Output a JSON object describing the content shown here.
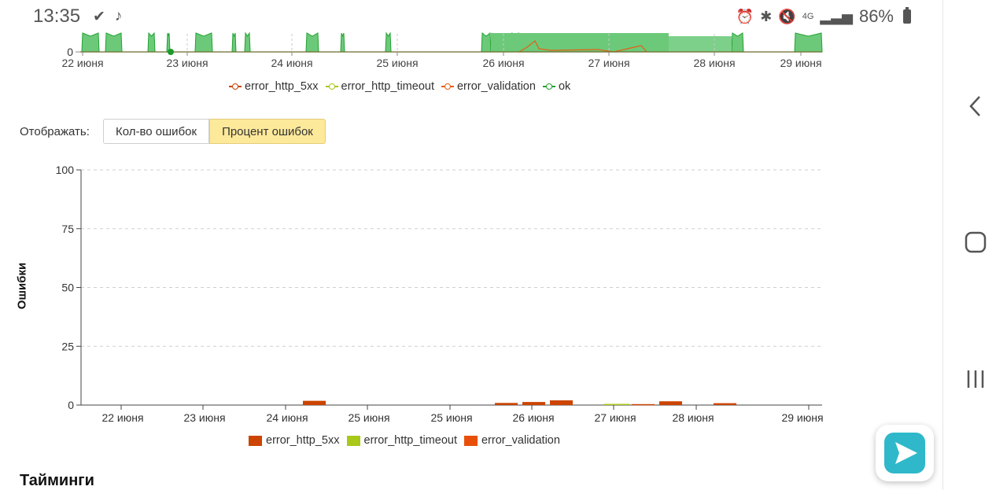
{
  "status": {
    "time": "13:35",
    "battery": "86%",
    "network": "4G"
  },
  "top_chart": {
    "y_tick": "0",
    "x_ticks": [
      "22 июня",
      "23 июня",
      "24 июня",
      "25 июня",
      "26 июня",
      "27 июня",
      "28 июня",
      "29 июня"
    ],
    "legend": [
      "error_http_5xx",
      "error_http_timeout",
      "error_validation",
      "ok"
    ]
  },
  "controls": {
    "display_label": "Отображать:",
    "count_button": "Кол-во ошибок",
    "percent_button": "Процент ошибок"
  },
  "chart_data": [
    {
      "type": "area",
      "title": "",
      "x": [
        "22 июня",
        "23 июня",
        "24 июня",
        "25 июня",
        "26 июня",
        "27 июня",
        "28 июня",
        "29 июня"
      ],
      "series": [
        {
          "name": "error_http_5xx",
          "color": "#cc4400"
        },
        {
          "name": "error_http_timeout",
          "color": "#a8c81a"
        },
        {
          "name": "error_validation",
          "color": "#e85d0f"
        },
        {
          "name": "ok",
          "color": "#22a332"
        }
      ]
    },
    {
      "type": "bar",
      "title": "",
      "ylabel": "Ошибки",
      "ylim": [
        0,
        100
      ],
      "y_ticks": [
        "0",
        "25",
        "50",
        "75",
        "100"
      ],
      "x_ticks": [
        "22 июня",
        "23 июня",
        "24 июня",
        "25 июня",
        "25 июня",
        "26 июня",
        "27 июня",
        "28 июня",
        "29 июня"
      ],
      "grid": true,
      "legend_position": "bottom",
      "series": [
        {
          "name": "error_http_5xx",
          "color": "#cc4400"
        },
        {
          "name": "error_http_timeout",
          "color": "#a8c81a"
        },
        {
          "name": "error_validation",
          "color": "#e8500a"
        }
      ],
      "bars": [
        {
          "x": "24 июня",
          "series": "error_http_5xx",
          "value": 1.8
        },
        {
          "x": "26 июня",
          "series": "error_http_5xx",
          "value": 0.9
        },
        {
          "x": "26 июня",
          "series": "error_http_5xx",
          "value": 1.3
        },
        {
          "x": "26 июня",
          "series": "error_http_5xx",
          "value": 2.0
        },
        {
          "x": "27 июня",
          "series": "error_http_timeout",
          "value": 0.5
        },
        {
          "x": "27 июня",
          "series": "error_http_5xx",
          "value": 0.4
        },
        {
          "x": "28 июня",
          "series": "error_http_5xx",
          "value": 1.6
        },
        {
          "x": "28 июня",
          "series": "error_http_5xx",
          "value": 0.8
        }
      ]
    }
  ],
  "section": {
    "title": "Тайминги"
  },
  "icons": {
    "back": "chevron-left-icon",
    "home": "square-home-icon",
    "recent": "recent-apps-icon",
    "fab": "play-app-icon"
  }
}
